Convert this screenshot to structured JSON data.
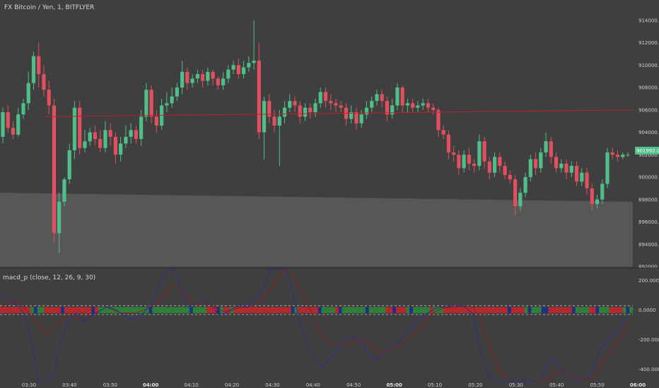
{
  "header": {
    "symbol_title": "FX Bitcoin / Yen, 1, BITFLYER",
    "indicator_title": "macd_p (close, 12, 26, 9, 30)"
  },
  "colors": {
    "background": "#3f3f3f",
    "up_candle": "#4fbf8a",
    "down_candle": "#e0505e",
    "lower_band": "#575757",
    "horizontal_line": "#c0202a",
    "macd_line": "#2b2f8c",
    "signal_line": "#8a1e1e",
    "current_price_label": "#4fbf8a"
  },
  "chart_data": [
    {
      "type": "candlestick",
      "title": "FX Bitcoin / Yen, 1, BITFLYER",
      "ylim": [
        892000,
        915000
      ],
      "y_ticks": [
        "914000.00",
        "912000.00",
        "910000.00",
        "908000.00",
        "906000.00",
        "904000.00",
        "902000.00",
        "900000.00",
        "898000.00",
        "896000.00",
        "894000.00",
        "892000.00"
      ],
      "current_price": "901992.00",
      "x_ticks": [
        {
          "label": "03:30",
          "bold": false
        },
        {
          "label": "03:40",
          "bold": false
        },
        {
          "label": "03:50",
          "bold": false
        },
        {
          "label": "04:00",
          "bold": true
        },
        {
          "label": "04:10",
          "bold": false
        },
        {
          "label": "04:20",
          "bold": false
        },
        {
          "label": "04:30",
          "bold": false
        },
        {
          "label": "04:40",
          "bold": false
        },
        {
          "label": "04:50",
          "bold": false
        },
        {
          "label": "05:00",
          "bold": true
        },
        {
          "label": "05:10",
          "bold": false
        },
        {
          "label": "05:20",
          "bold": false
        },
        {
          "label": "05:30",
          "bold": false
        },
        {
          "label": "05:40",
          "bold": false
        },
        {
          "label": "05:50",
          "bold": false
        },
        {
          "label": "06:00",
          "bold": true
        }
      ],
      "candles": [
        [
          903600,
          905800,
          903000,
          906200
        ],
        [
          905800,
          904400,
          904000,
          906400
        ],
        [
          904400,
          903800,
          903400,
          905000
        ],
        [
          903800,
          905600,
          903600,
          906200
        ],
        [
          905600,
          906600,
          905200,
          907000
        ],
        [
          906600,
          908400,
          906000,
          909400
        ],
        [
          908400,
          910800,
          907800,
          911200
        ],
        [
          910800,
          909200,
          908000,
          912000
        ],
        [
          909200,
          907800,
          907200,
          910000
        ],
        [
          907800,
          906400,
          905600,
          908600
        ],
        [
          906400,
          895000,
          894200,
          907000
        ],
        [
          895000,
          897800,
          893200,
          898600
        ],
        [
          897800,
          899800,
          897400,
          900000
        ],
        [
          899800,
          902400,
          899400,
          903000
        ],
        [
          902400,
          906200,
          901600,
          906800
        ],
        [
          906200,
          902600,
          902000,
          906800
        ],
        [
          902600,
          903200,
          902200,
          904200
        ],
        [
          903200,
          904000,
          902800,
          904400
        ],
        [
          904000,
          903400,
          902800,
          904600
        ],
        [
          903400,
          902600,
          902200,
          904200
        ],
        [
          902600,
          904200,
          902200,
          905000
        ],
        [
          904200,
          903600,
          902800,
          904800
        ],
        [
          903600,
          902000,
          901200,
          904000
        ],
        [
          902000,
          903000,
          901400,
          903600
        ],
        [
          903000,
          903600,
          902600,
          904600
        ],
        [
          903600,
          904200,
          903000,
          904800
        ],
        [
          904200,
          903400,
          903000,
          904600
        ],
        [
          903400,
          905400,
          902800,
          906000
        ],
        [
          905400,
          907800,
          905000,
          908400
        ],
        [
          907800,
          905400,
          904800,
          908200
        ],
        [
          905400,
          904600,
          904000,
          906000
        ],
        [
          904600,
          906400,
          904200,
          907000
        ],
        [
          906400,
          906600,
          905800,
          907600
        ],
        [
          906600,
          907200,
          906200,
          908000
        ],
        [
          907200,
          908000,
          906800,
          908400
        ],
        [
          908000,
          909400,
          907400,
          910400
        ],
        [
          909400,
          908400,
          907800,
          909800
        ],
        [
          908400,
          908800,
          908000,
          909200
        ],
        [
          908800,
          909200,
          908400,
          909600
        ],
        [
          909200,
          908600,
          908000,
          909600
        ],
        [
          908600,
          909400,
          908200,
          909800
        ],
        [
          909400,
          908800,
          908200,
          909600
        ],
        [
          908800,
          908200,
          907800,
          909000
        ],
        [
          908200,
          908800,
          907800,
          909400
        ],
        [
          908800,
          909600,
          908400,
          910000
        ],
        [
          909600,
          910000,
          909200,
          910400
        ],
        [
          910000,
          909200,
          908800,
          910600
        ],
        [
          909200,
          909800,
          908800,
          910400
        ],
        [
          909800,
          910200,
          909400,
          910800
        ],
        [
          910200,
          910400,
          909600,
          914000
        ],
        [
          910400,
          904000,
          903400,
          912000
        ],
        [
          904000,
          906800,
          901600,
          907200
        ],
        [
          906800,
          905400,
          904800,
          907400
        ],
        [
          905400,
          904600,
          904000,
          906000
        ],
        [
          904600,
          905400,
          901000,
          906000
        ],
        [
          905400,
          906200,
          904800,
          906800
        ],
        [
          906200,
          906800,
          905800,
          907400
        ],
        [
          906800,
          906400,
          905800,
          907200
        ],
        [
          906400,
          905400,
          904800,
          906800
        ],
        [
          905400,
          906200,
          905000,
          906600
        ],
        [
          906200,
          905800,
          905200,
          906600
        ],
        [
          905800,
          906600,
          905400,
          907000
        ],
        [
          906600,
          907600,
          906200,
          908000
        ],
        [
          907600,
          906800,
          906200,
          908000
        ],
        [
          906800,
          906600,
          906000,
          907400
        ],
        [
          906600,
          906400,
          905800,
          907000
        ],
        [
          906400,
          906200,
          905800,
          906800
        ],
        [
          906200,
          905200,
          904600,
          906600
        ],
        [
          905200,
          905800,
          904800,
          906400
        ],
        [
          905800,
          904800,
          904200,
          906200
        ],
        [
          904800,
          905600,
          904400,
          906000
        ],
        [
          905600,
          906200,
          905200,
          906800
        ],
        [
          906200,
          906800,
          905800,
          907200
        ],
        [
          906800,
          907400,
          906400,
          907800
        ],
        [
          907400,
          906800,
          906200,
          907800
        ],
        [
          906800,
          905600,
          905000,
          907200
        ],
        [
          905600,
          906400,
          905200,
          907000
        ],
        [
          906400,
          908000,
          906000,
          908400
        ],
        [
          908000,
          906400,
          905800,
          908200
        ],
        [
          906400,
          906600,
          905800,
          907000
        ],
        [
          906600,
          906200,
          905800,
          907000
        ],
        [
          906200,
          906400,
          905800,
          906800
        ],
        [
          906400,
          906600,
          906000,
          907000
        ],
        [
          906600,
          906200,
          905800,
          907000
        ],
        [
          906200,
          906000,
          905600,
          906600
        ],
        [
          906000,
          904200,
          903600,
          906200
        ],
        [
          904200,
          903800,
          903400,
          904600
        ],
        [
          903800,
          902200,
          901600,
          904200
        ],
        [
          902200,
          902000,
          901400,
          902800
        ],
        [
          902000,
          900800,
          900200,
          902400
        ],
        [
          900800,
          902000,
          900400,
          902400
        ],
        [
          902000,
          901200,
          900600,
          902600
        ],
        [
          901200,
          901000,
          900400,
          901600
        ],
        [
          901000,
          903200,
          900600,
          903800
        ],
        [
          903200,
          901400,
          900800,
          903600
        ],
        [
          901400,
          900400,
          899800,
          901800
        ],
        [
          900400,
          901800,
          900000,
          902200
        ],
        [
          901800,
          901000,
          900400,
          902200
        ],
        [
          901000,
          900200,
          899800,
          901400
        ],
        [
          900200,
          899800,
          899400,
          900600
        ],
        [
          899800,
          897400,
          896600,
          900200
        ],
        [
          897400,
          898600,
          897000,
          899000
        ],
        [
          898600,
          900000,
          898200,
          900400
        ],
        [
          900000,
          901600,
          899600,
          902000
        ],
        [
          901600,
          900800,
          900200,
          902200
        ],
        [
          900800,
          902200,
          900400,
          902600
        ],
        [
          902200,
          903200,
          901800,
          904000
        ],
        [
          903200,
          901800,
          901200,
          903600
        ],
        [
          901800,
          900800,
          900400,
          902200
        ],
        [
          900800,
          901200,
          900400,
          901600
        ],
        [
          901200,
          900400,
          899800,
          901600
        ],
        [
          900400,
          901000,
          900000,
          901400
        ],
        [
          901000,
          899600,
          899200,
          901400
        ],
        [
          899600,
          900400,
          899200,
          900800
        ],
        [
          900400,
          899000,
          898400,
          900800
        ],
        [
          899000,
          897600,
          897000,
          899400
        ],
        [
          897600,
          898000,
          897200,
          898400
        ],
        [
          898000,
          899400,
          897600,
          899800
        ],
        [
          899400,
          902200,
          899000,
          902600
        ],
        [
          902200,
          902000,
          901600,
          902600
        ],
        [
          902000,
          901800,
          901400,
          902400
        ],
        [
          901800,
          902000,
          901600,
          902200
        ],
        [
          902000,
          902000,
          901800,
          902200
        ]
      ],
      "horizontal_line": {
        "start_value": 905400,
        "end_value": 906000
      },
      "lower_band_boundary": {
        "start_value": 898600,
        "end_value": 897800
      }
    },
    {
      "type": "line",
      "title": "macd_p (close, 12, 26, 9, 30)",
      "ylim": [
        -480,
        280
      ],
      "y_ticks": [
        "200.0000",
        "0.0000",
        "-200.0000",
        "-400.0000"
      ],
      "levels": [
        30,
        -30
      ],
      "series": [
        {
          "values": [
            120,
            80,
            40,
            -20,
            -200,
            -560,
            -680,
            -440,
            -200,
            -60,
            -20,
            -80,
            -40,
            -10,
            20,
            10,
            -20,
            -60,
            -60,
            -20,
            40,
            150,
            260,
            300,
            150,
            20,
            50,
            80,
            40,
            -30,
            -20,
            10,
            40,
            20,
            80,
            150,
            280,
            420,
            300,
            120,
            -100,
            -250,
            -340,
            -390,
            -330,
            -260,
            -200,
            -180,
            -200,
            -290,
            -340,
            -300,
            -250,
            -220,
            -170,
            -100,
            -60,
            -20,
            10,
            20,
            30,
            40,
            20,
            -20,
            -250,
            -430,
            -560,
            -600,
            -560,
            -500,
            -520,
            -560,
            -470,
            -380,
            -330,
            -400,
            -470,
            -490,
            -470,
            -420,
            -280,
            -210,
            -150,
            -100,
            -40
          ]
        },
        {
          "values": [
            20,
            50,
            60,
            20,
            -40,
            -100,
            -160,
            -120,
            -60,
            -20,
            -60,
            -40,
            -40,
            -10,
            20,
            0,
            -20,
            -20,
            -20,
            0,
            20,
            60,
            120,
            170,
            140,
            80,
            40,
            40,
            40,
            0,
            -10,
            0,
            20,
            20,
            40,
            80,
            140,
            220,
            280,
            240,
            140,
            40,
            -80,
            -180,
            -230,
            -230,
            -230,
            -220,
            -200,
            -230,
            -260,
            -290,
            -270,
            -240,
            -210,
            -170,
            -120,
            -60,
            -10,
            10,
            20,
            30,
            30,
            20,
            -50,
            -200,
            -330,
            -440,
            -520,
            -540,
            -540,
            -560,
            -520,
            -470,
            -420,
            -420,
            -440,
            -460,
            -470,
            -460,
            -380,
            -320,
            -250,
            -180,
            -60
          ]
        }
      ],
      "strip_colors": "rrrrrrrrrgbggrrrrrbrrrrrrrrbrgggggggggggggggbgggggggggggbggggrrrbgrrgrrrrrrrrrrrrrrrrrbgrrrrrrbggggrbgggggggbgggggrrbrrrgbgggggrgggrrrrrrrrrrrrrrrrrrrbrrrrgbgggbbrrrrrrrbggggrrbgggrrrrgbg"
    }
  ]
}
